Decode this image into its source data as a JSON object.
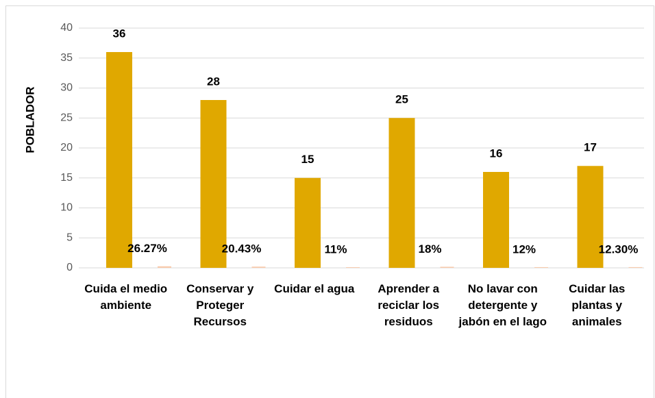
{
  "chart_data": {
    "type": "bar",
    "y_axis_label": "POBLADOR",
    "categories": [
      "Cuida el medio ambiente",
      "Conservar y Proteger Recursos",
      "Cuidar el agua",
      "Aprender a reciclar los residuos",
      "No lavar con detergente y jabón en el lago",
      "Cuidar las plantas y animales"
    ],
    "series": [
      {
        "color": "#e0a800",
        "values": [
          36,
          28,
          15,
          25,
          16,
          17
        ]
      },
      {
        "color": "#f8cbad",
        "values": [
          0.2627,
          0.2043,
          0.11,
          0.18,
          0.12,
          0.123
        ],
        "value_labels": [
          "26.27%",
          "20.43%",
          "11%",
          "18%",
          "12%",
          "12.30%"
        ]
      }
    ],
    "ylim": [
      0,
      40
    ],
    "yticks": [
      0,
      5,
      10,
      15,
      20,
      25,
      30,
      35,
      40
    ],
    "grid": true
  }
}
